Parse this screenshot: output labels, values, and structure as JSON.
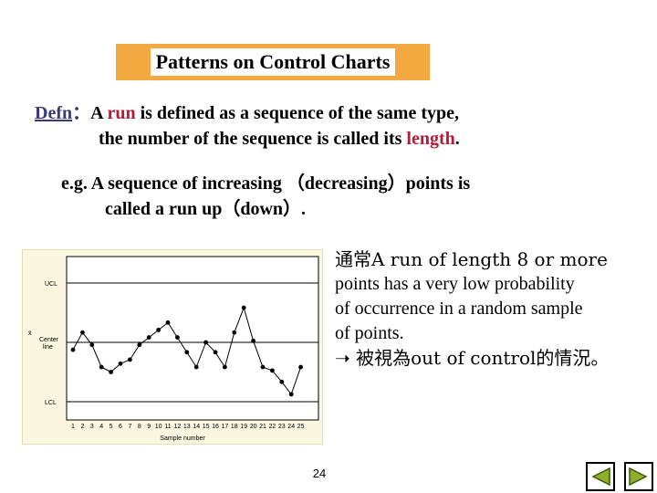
{
  "title": "Patterns on Control Charts",
  "defn": {
    "label": "Defn",
    "colon": "：",
    "line1_a": "A ",
    "line1_run": "run",
    "line1_b": " is defined as a sequence of the same type,",
    "line2_a": "the number of the sequence is called its ",
    "line2_length": "length",
    "line2_b": "."
  },
  "example": {
    "line1": "e.g.  A sequence of increasing （decreasing）points is",
    "line2": "called a run up（down）."
  },
  "note": {
    "line1": "通常A run of length 8 or more",
    "line2": "points has a very low probability",
    "line3": "of occurrence in a random sample",
    "line4": "of points.",
    "arrow": "",
    "line5": " 被視為out of control的情況。"
  },
  "page_number": "24",
  "nav": {
    "prev_icon": "triangle-left-icon",
    "next_icon": "triangle-right-icon"
  },
  "chart_data": {
    "type": "line",
    "ucl_label": "UCL",
    "center_label": "Center line",
    "lcl_label": "LCL",
    "xbar_symbol": "x̄",
    "xlabel": "Sample number",
    "x": [
      1,
      2,
      3,
      4,
      5,
      6,
      7,
      8,
      9,
      10,
      11,
      12,
      13,
      14,
      15,
      16,
      17,
      18,
      19,
      20,
      21,
      22,
      23,
      24,
      25
    ],
    "values": [
      0.4,
      0.75,
      0.5,
      0.05,
      -0.05,
      0.12,
      0.2,
      0.5,
      0.65,
      0.8,
      0.95,
      0.65,
      0.35,
      0.05,
      0.55,
      0.35,
      0.05,
      0.75,
      1.25,
      0.58,
      0.05,
      -0.02,
      -0.25,
      -0.5,
      0.05
    ],
    "ucl": 1.75,
    "center": 0.55,
    "lcl": -0.65,
    "colors": {
      "line": "#000000",
      "bg": "#fbf6e0"
    }
  }
}
